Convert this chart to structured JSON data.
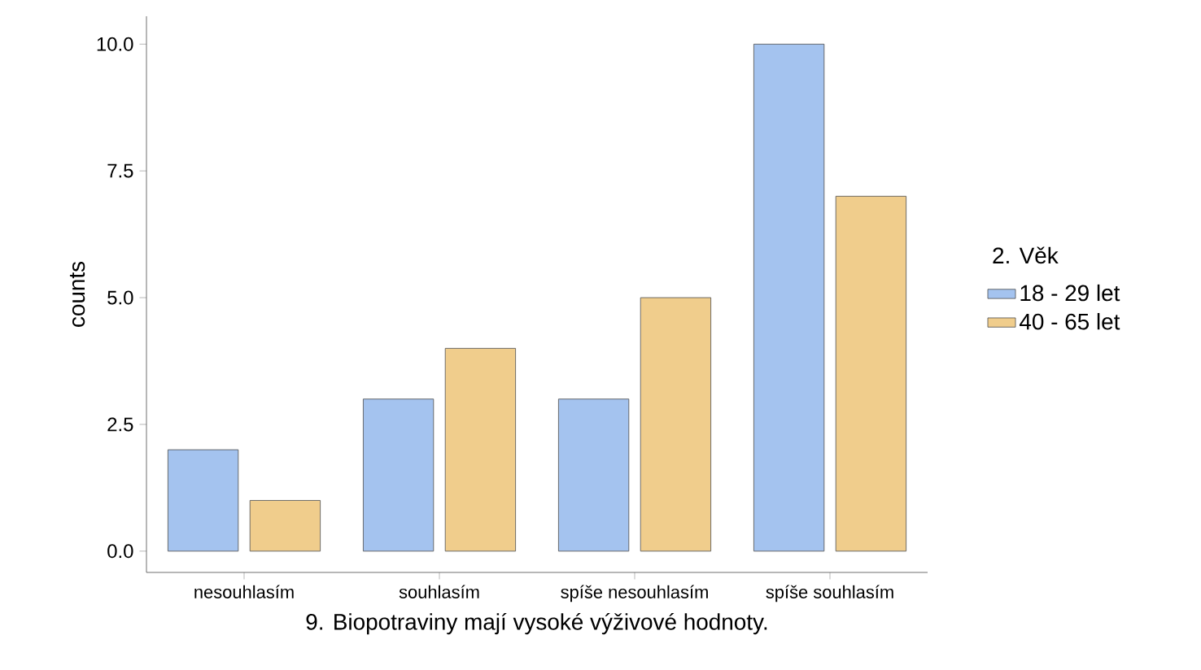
{
  "chart_data": {
    "type": "bar",
    "xlabel": "9.  Biopotraviny mají vysoké výživové hodnoty.",
    "ylabel": "counts",
    "legend_title": "2. Věk",
    "categories": [
      "nesouhlasím",
      "souhlasím",
      "spíše nesouhlasím",
      "spíše souhlasím"
    ],
    "series": [
      {
        "name": "18 - 29 let",
        "color": "#a4c3ef",
        "values": [
          2,
          3,
          3,
          10
        ]
      },
      {
        "name": "40 - 65 let",
        "color": "#f0cd8c",
        "values": [
          1,
          4,
          5,
          7
        ]
      }
    ],
    "ylim": [
      -0.42,
      10.55
    ],
    "yticks": [
      {
        "value": 0,
        "label": "0.0"
      },
      {
        "value": 2.5,
        "label": "2.5"
      },
      {
        "value": 5,
        "label": "5.0"
      },
      {
        "value": 7.5,
        "label": "7.5"
      },
      {
        "value": 10,
        "label": "10.0"
      }
    ],
    "grid": false,
    "legend": "right"
  }
}
